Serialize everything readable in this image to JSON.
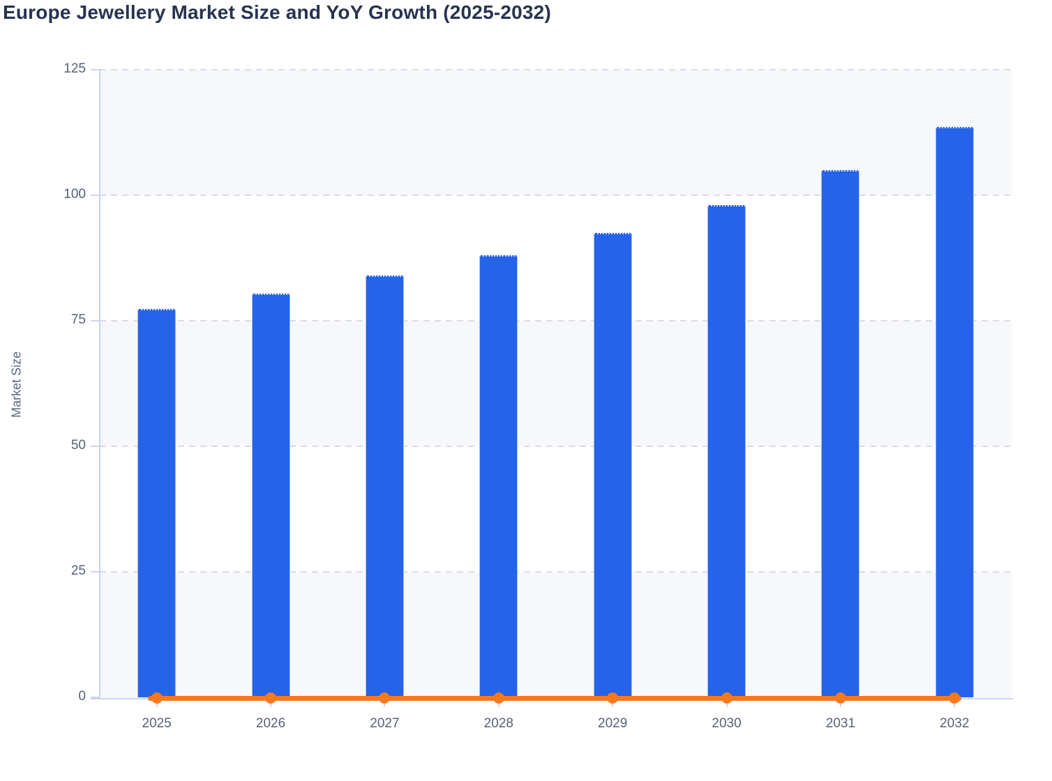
{
  "title": "Europe Jewellery Market Size and YoY Growth (2025-2032)",
  "y_axis_title": "Market Size",
  "chart_data": {
    "type": "bar",
    "title": "Europe Jewellery Market Size and YoY Growth (2025-2032)",
    "categories": [
      "2025",
      "2026",
      "2027",
      "2028",
      "2029",
      "2030",
      "2031",
      "2032"
    ],
    "series": [
      {
        "name": "Market Size",
        "type": "bar",
        "values": [
          77.4,
          80.4,
          84,
          88,
          92.5,
          98,
          105,
          113.6
        ]
      },
      {
        "name": "YoY Growth",
        "type": "line",
        "values": [
          0,
          0,
          0,
          0,
          0,
          0,
          0,
          0
        ]
      }
    ],
    "xlabel": "",
    "ylabel": "Market Size",
    "ylim": [
      0,
      125
    ],
    "yticks": [
      0,
      25,
      50,
      75,
      100,
      125
    ],
    "grid": "dashed horizontal gridlines, alternating background bands",
    "legend": "none"
  },
  "colors": {
    "bar": "#2563e9",
    "bar_border": "#a9bdf1",
    "line": "#f7791d",
    "grid": "#d9dce4",
    "axis": "#c9d3ee",
    "band_light": "#f7f8fb",
    "band_white": "#ffffff",
    "title_text": "#27334e",
    "axis_text": "#566176"
  }
}
